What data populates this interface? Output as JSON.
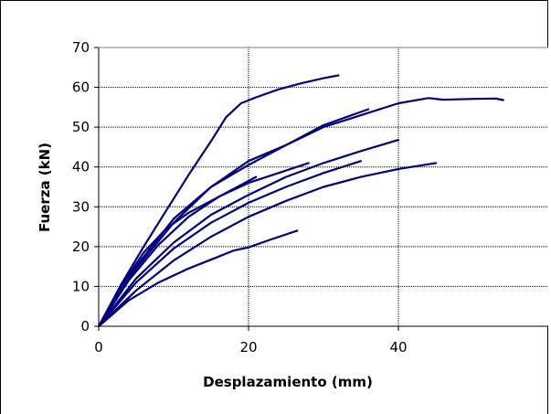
{
  "chart_data": {
    "type": "line",
    "title": "",
    "xlabel": "Desplazamiento (mm)",
    "ylabel": "Fuerza (kN)",
    "xlim": [
      0,
      60
    ],
    "ylim": [
      0,
      70
    ],
    "x_ticks": [
      0,
      20,
      40
    ],
    "y_ticks": [
      0,
      10,
      20,
      30,
      40,
      50,
      60,
      70
    ],
    "grid": true,
    "legend": "none",
    "line_color": "#000080",
    "series": [
      {
        "x": [
          0,
          3,
          6,
          9,
          12,
          15,
          17,
          19,
          21,
          24,
          27,
          30,
          32
        ],
        "y": [
          0,
          10.5,
          20,
          29,
          38,
          46.5,
          52.5,
          56,
          57.5,
          59.5,
          61,
          62.3,
          63
        ]
      },
      {
        "x": [
          0,
          5,
          10,
          15,
          20,
          25,
          30,
          35,
          40,
          44,
          46,
          50,
          53,
          54
        ],
        "y": [
          0,
          14.5,
          26,
          35,
          41.5,
          45.5,
          50,
          53,
          56,
          57.3,
          56.9,
          57.1,
          57.2,
          56.8
        ]
      },
      {
        "x": [
          0,
          5,
          10,
          15,
          20,
          25,
          30,
          36
        ],
        "y": [
          0,
          15,
          27,
          35,
          40.5,
          45.5,
          50.5,
          54.5
        ]
      },
      {
        "x": [
          0,
          5,
          10,
          15,
          20,
          25,
          30,
          35,
          40
        ],
        "y": [
          0,
          12,
          21,
          28,
          33,
          37.5,
          41,
          44,
          46.8
        ]
      },
      {
        "x": [
          0,
          5,
          10,
          15,
          20,
          25,
          30,
          35
        ],
        "y": [
          0,
          11,
          19.5,
          26,
          31,
          35,
          38.5,
          41.5
        ]
      },
      {
        "x": [
          0,
          5,
          10,
          15,
          20,
          25,
          30,
          35,
          40,
          45
        ],
        "y": [
          0,
          9,
          16.5,
          22.5,
          27.5,
          31.5,
          35,
          37.5,
          39.5,
          41
        ]
      },
      {
        "x": [
          0,
          4,
          8,
          12,
          16,
          20,
          24,
          28
        ],
        "y": [
          0,
          11.5,
          20.5,
          27.5,
          32.5,
          36,
          38.5,
          41
        ]
      },
      {
        "x": [
          0,
          3,
          6,
          9,
          12,
          15,
          18,
          21
        ],
        "y": [
          0,
          10,
          18.5,
          24.5,
          28.5,
          31.5,
          34.5,
          37.5
        ]
      },
      {
        "x": [
          0,
          4,
          8,
          12,
          16,
          18,
          20,
          23,
          26.5
        ],
        "y": [
          0,
          6.5,
          11,
          14.5,
          17.5,
          19,
          19.8,
          21.8,
          24
        ]
      }
    ]
  }
}
